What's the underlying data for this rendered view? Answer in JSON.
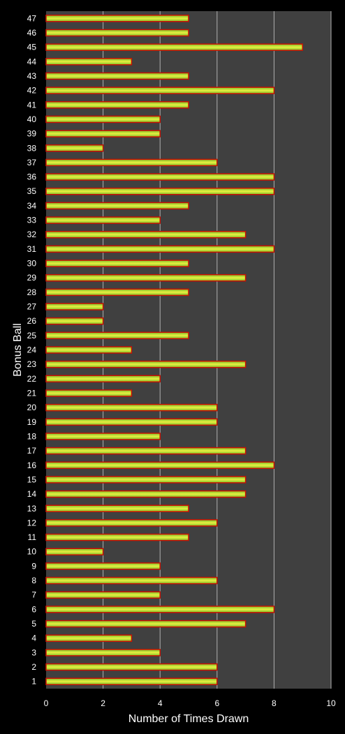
{
  "chart_data": {
    "type": "bar",
    "orientation": "horizontal",
    "xlabel": "Number of Times Drawn",
    "ylabel": "Bonus Ball",
    "xlim": [
      0,
      10
    ],
    "xticks": [
      0,
      2,
      4,
      6,
      8,
      10
    ],
    "grid": "vertical",
    "categories": [
      "1",
      "2",
      "3",
      "4",
      "5",
      "6",
      "7",
      "8",
      "9",
      "10",
      "11",
      "12",
      "13",
      "14",
      "15",
      "16",
      "17",
      "18",
      "19",
      "20",
      "21",
      "22",
      "23",
      "24",
      "25",
      "26",
      "27",
      "28",
      "29",
      "30",
      "31",
      "32",
      "33",
      "34",
      "35",
      "36",
      "37",
      "38",
      "39",
      "40",
      "41",
      "42",
      "43",
      "44",
      "45",
      "46",
      "47"
    ],
    "values": [
      6,
      6,
      4,
      3,
      7,
      8,
      4,
      6,
      4,
      2,
      5,
      6,
      5,
      7,
      7,
      8,
      7,
      4,
      6,
      6,
      3,
      4,
      7,
      3,
      5,
      2,
      2,
      5,
      7,
      5,
      8,
      7,
      4,
      5,
      8,
      8,
      6,
      2,
      4,
      4,
      5,
      8,
      5,
      3,
      9,
      5,
      5
    ],
    "colors": {
      "background": "#000000",
      "plot_area": "#404040",
      "gridline": "#b0b0b0",
      "bar_border": "#cc1100",
      "bar_center": "#e8f040",
      "bar_edge": "#7abe2a"
    }
  }
}
